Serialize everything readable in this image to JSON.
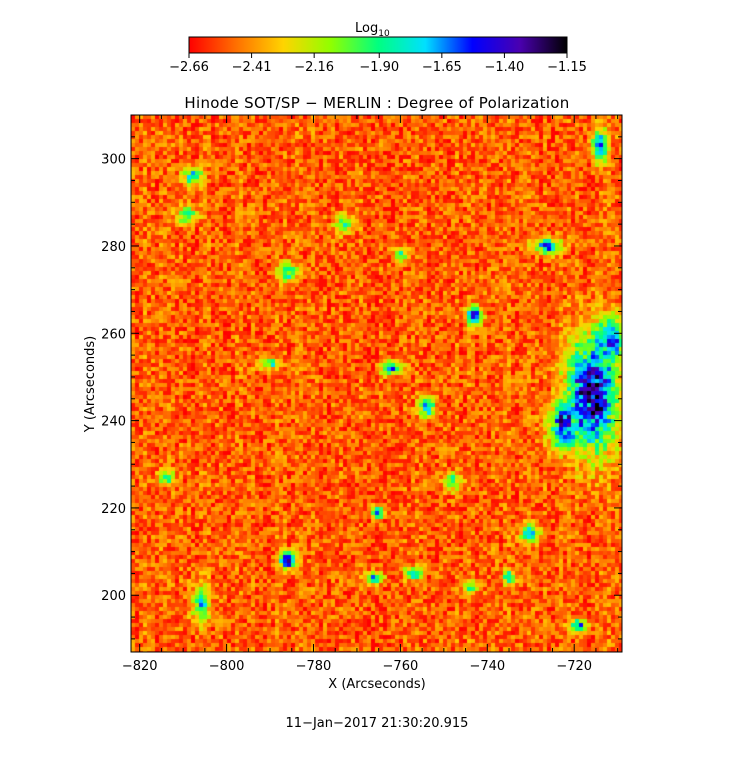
{
  "chart_data": {
    "type": "heatmap",
    "title": "Hinode SOT/SP − MERLIN : Degree of Polarization",
    "xlabel": "X (Arcseconds)",
    "ylabel": "Y (Arcseconds)",
    "xlim": [
      -822,
      -709
    ],
    "ylim": [
      187,
      310
    ],
    "x_ticks": [
      -820,
      -800,
      -780,
      -760,
      -740,
      -720
    ],
    "y_ticks": [
      200,
      220,
      240,
      260,
      280,
      300
    ],
    "x_tick_labels": [
      "−820",
      "−800",
      "−780",
      "−760",
      "−740",
      "−720"
    ],
    "y_tick_labels": [
      "200",
      "220",
      "240",
      "260",
      "280",
      "300"
    ],
    "colorbar": {
      "label_base": "Log",
      "label_sub": "10",
      "range": [
        -2.66,
        -1.15
      ],
      "tick_values": [
        -2.66,
        -2.41,
        -2.16,
        -1.9,
        -1.65,
        -1.4,
        -1.15
      ],
      "tick_labels": [
        "−2.66",
        "−2.41",
        "−2.16",
        "−1.90",
        "−1.65",
        "−1.40",
        "−1.15"
      ],
      "colors": [
        "#ff0000",
        "#ff7000",
        "#ffd400",
        "#90ff00",
        "#00ff80",
        "#00e0ff",
        "#0000ff",
        "#4a00b0",
        "#000000"
      ]
    },
    "background_level": -2.5,
    "features": [
      {
        "x": -716,
        "y": 246,
        "sx": 4,
        "sy": 9,
        "peak": -1.3
      },
      {
        "x": -722,
        "y": 239,
        "sx": 2.5,
        "sy": 4,
        "peak": -1.45
      },
      {
        "x": -712,
        "y": 258,
        "sx": 3,
        "sy": 4,
        "peak": -1.55
      },
      {
        "x": -743,
        "y": 264,
        "sx": 1.2,
        "sy": 1.5,
        "peak": -1.35
      },
      {
        "x": -786,
        "y": 208,
        "sx": 1.2,
        "sy": 1.3,
        "peak": -1.35
      },
      {
        "x": -726,
        "y": 280,
        "sx": 2,
        "sy": 1.2,
        "peak": -1.5
      },
      {
        "x": -714,
        "y": 303,
        "sx": 1.2,
        "sy": 2.5,
        "peak": -1.5
      },
      {
        "x": -754,
        "y": 243,
        "sx": 1.2,
        "sy": 1.5,
        "peak": -1.6
      },
      {
        "x": -762,
        "y": 252,
        "sx": 1.5,
        "sy": 1.2,
        "peak": -1.7
      },
      {
        "x": -808,
        "y": 296,
        "sx": 1.5,
        "sy": 1.5,
        "peak": -1.75
      },
      {
        "x": -765,
        "y": 219,
        "sx": 1,
        "sy": 1,
        "peak": -1.6
      },
      {
        "x": -719,
        "y": 193,
        "sx": 1.5,
        "sy": 1,
        "peak": -1.65
      },
      {
        "x": -730,
        "y": 214,
        "sx": 1.5,
        "sy": 1.5,
        "peak": -1.75
      },
      {
        "x": -809,
        "y": 287,
        "sx": 1.5,
        "sy": 1.2,
        "peak": -1.8
      },
      {
        "x": -766,
        "y": 204,
        "sx": 1.5,
        "sy": 1,
        "peak": -1.8
      },
      {
        "x": -757,
        "y": 205,
        "sx": 1.5,
        "sy": 1,
        "peak": -1.8
      },
      {
        "x": -790,
        "y": 253,
        "sx": 1.5,
        "sy": 1,
        "peak": -1.85
      },
      {
        "x": -786,
        "y": 274,
        "sx": 1.5,
        "sy": 1.5,
        "peak": -1.85
      },
      {
        "x": -814,
        "y": 227,
        "sx": 1.2,
        "sy": 1.2,
        "peak": -1.85
      },
      {
        "x": -773,
        "y": 285,
        "sx": 1.5,
        "sy": 1.5,
        "peak": -1.9
      },
      {
        "x": -760,
        "y": 278,
        "sx": 1.2,
        "sy": 1.2,
        "peak": -1.9
      },
      {
        "x": -806,
        "y": 198,
        "sx": 1.5,
        "sy": 3,
        "peak": -1.85
      },
      {
        "x": -748,
        "y": 226,
        "sx": 1.5,
        "sy": 1.5,
        "peak": -1.95
      },
      {
        "x": -735,
        "y": 204,
        "sx": 1.2,
        "sy": 1.2,
        "peak": -1.9
      },
      {
        "x": -744,
        "y": 202,
        "sx": 1.2,
        "sy": 1.2,
        "peak": -1.95
      }
    ]
  },
  "footer": {
    "timestamp": "11−Jan−2017 21:30:20.915"
  }
}
